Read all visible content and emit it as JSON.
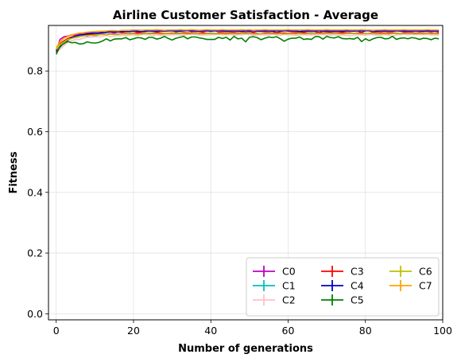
{
  "chart_data": {
    "type": "line",
    "title": "Airline Customer Satisfaction - Average",
    "xlabel": "Number of generations",
    "ylabel": "Fitness",
    "xlim": [
      -2,
      100
    ],
    "ylim": [
      -0.02,
      0.95
    ],
    "xticks": [
      0,
      20,
      40,
      60,
      80,
      100
    ],
    "yticks": [
      0.0,
      0.2,
      0.4,
      0.6,
      0.8
    ],
    "xtick_labels": [
      "0",
      "20",
      "40",
      "60",
      "80",
      "100"
    ],
    "ytick_labels": [
      "0.0",
      "0.2",
      "0.4",
      "0.6",
      "0.8"
    ],
    "grid": true,
    "legend_position": "lower-right",
    "legend_columns": 3,
    "x": [
      0,
      1,
      2,
      3,
      4,
      5,
      6,
      7,
      8,
      9,
      10,
      11,
      12,
      13,
      14,
      15,
      16,
      17,
      18,
      19,
      20,
      21,
      22,
      23,
      24,
      25,
      26,
      27,
      28,
      29,
      30,
      31,
      32,
      33,
      34,
      35,
      36,
      37,
      38,
      39,
      40,
      41,
      42,
      43,
      44,
      45,
      46,
      47,
      48,
      49,
      50,
      51,
      52,
      53,
      54,
      55,
      56,
      57,
      58,
      59,
      60,
      61,
      62,
      63,
      64,
      65,
      66,
      67,
      68,
      69,
      70,
      71,
      72,
      73,
      74,
      75,
      76,
      77,
      78,
      79,
      80,
      81,
      82,
      83,
      84,
      85,
      86,
      87,
      88,
      89,
      90,
      91,
      92,
      93,
      94,
      95,
      96,
      97,
      98,
      99
    ],
    "series": [
      {
        "name": "C0",
        "color": "#bf00bf",
        "values": [
          0.866,
          0.904,
          0.913,
          0.915,
          0.919,
          0.918,
          0.922,
          0.925,
          0.926,
          0.926,
          0.925,
          0.926,
          0.927,
          0.928,
          0.93,
          0.925,
          0.929,
          0.928,
          0.93,
          0.93,
          0.931,
          0.928,
          0.929,
          0.93,
          0.932,
          0.93,
          0.929,
          0.931,
          0.931,
          0.932,
          0.933,
          0.929,
          0.933,
          0.932,
          0.933,
          0.93,
          0.929,
          0.931,
          0.93,
          0.932,
          0.934,
          0.933,
          0.929,
          0.931,
          0.931,
          0.93,
          0.929,
          0.93,
          0.931,
          0.929,
          0.93,
          0.928,
          0.931,
          0.93,
          0.93,
          0.929,
          0.931,
          0.926,
          0.93,
          0.933,
          0.931,
          0.931,
          0.93,
          0.929,
          0.929,
          0.93,
          0.93,
          0.93,
          0.926,
          0.931,
          0.929,
          0.928,
          0.93,
          0.93,
          0.928,
          0.932,
          0.93,
          0.931,
          0.932,
          0.926,
          0.933,
          0.932,
          0.927,
          0.93,
          0.93,
          0.931,
          0.93,
          0.93,
          0.932,
          0.931,
          0.929,
          0.929,
          0.929,
          0.931,
          0.929,
          0.931,
          0.93,
          0.929,
          0.931,
          0.93
        ]
      },
      {
        "name": "C1",
        "color": "#00bfbf",
        "values": [
          0.855,
          0.884,
          0.889,
          0.903,
          0.909,
          0.91,
          0.913,
          0.917,
          0.915,
          0.918,
          0.916,
          0.919,
          0.922,
          0.92,
          0.922,
          0.92,
          0.922,
          0.922,
          0.922,
          0.924,
          0.924,
          0.923,
          0.92,
          0.924,
          0.925,
          0.924,
          0.924,
          0.921,
          0.923,
          0.924,
          0.922,
          0.926,
          0.925,
          0.925,
          0.922,
          0.925,
          0.923,
          0.922,
          0.924,
          0.924,
          0.925,
          0.924,
          0.923,
          0.923,
          0.922,
          0.925,
          0.922,
          0.924,
          0.924,
          0.924,
          0.925,
          0.922,
          0.924,
          0.922,
          0.922,
          0.924,
          0.924,
          0.925,
          0.923,
          0.924,
          0.923,
          0.924,
          0.924,
          0.923,
          0.925,
          0.924,
          0.925,
          0.922,
          0.924,
          0.924,
          0.924,
          0.923,
          0.924,
          0.924,
          0.923,
          0.925,
          0.925,
          0.923,
          0.924,
          0.923,
          0.924,
          0.922,
          0.922,
          0.922,
          0.924,
          0.924,
          0.922,
          0.925,
          0.923,
          0.924,
          0.923,
          0.923,
          0.924,
          0.924,
          0.923,
          0.924,
          0.924,
          0.922,
          0.924,
          0.923
        ]
      },
      {
        "name": "C2",
        "color": "#ffc0cb",
        "values": [
          0.86,
          0.872,
          0.883,
          0.896,
          0.9,
          0.904,
          0.904,
          0.908,
          0.911,
          0.911,
          0.913,
          0.912,
          0.914,
          0.918,
          0.913,
          0.916,
          0.916,
          0.917,
          0.917,
          0.918,
          0.919,
          0.917,
          0.92,
          0.92,
          0.919,
          0.915,
          0.92,
          0.917,
          0.919,
          0.918,
          0.919,
          0.92,
          0.918,
          0.918,
          0.921,
          0.92,
          0.92,
          0.918,
          0.919,
          0.918,
          0.92,
          0.919,
          0.921,
          0.919,
          0.919,
          0.92,
          0.918,
          0.919,
          0.919,
          0.922,
          0.919,
          0.917,
          0.919,
          0.919,
          0.919,
          0.918,
          0.921,
          0.919,
          0.918,
          0.92,
          0.919,
          0.919,
          0.917,
          0.919,
          0.919,
          0.919,
          0.918,
          0.919,
          0.92,
          0.92,
          0.918,
          0.918,
          0.919,
          0.918,
          0.919,
          0.917,
          0.916,
          0.918,
          0.919,
          0.919,
          0.918,
          0.92,
          0.919,
          0.918,
          0.918,
          0.92,
          0.918,
          0.915,
          0.919,
          0.919,
          0.921,
          0.919,
          0.92,
          0.92,
          0.92,
          0.919,
          0.92,
          0.919,
          0.918,
          0.918
        ]
      },
      {
        "name": "C3",
        "color": "#ff0000",
        "values": [
          0.87,
          0.89,
          0.899,
          0.907,
          0.912,
          0.915,
          0.917,
          0.919,
          0.919,
          0.92,
          0.92,
          0.922,
          0.922,
          0.92,
          0.923,
          0.922,
          0.921,
          0.924,
          0.924,
          0.923,
          0.924,
          0.925,
          0.924,
          0.925,
          0.924,
          0.923,
          0.926,
          0.925,
          0.924,
          0.924,
          0.925,
          0.924,
          0.924,
          0.926,
          0.925,
          0.925,
          0.923,
          0.925,
          0.926,
          0.924,
          0.924,
          0.923,
          0.924,
          0.926,
          0.925,
          0.925,
          0.925,
          0.923,
          0.926,
          0.924,
          0.924,
          0.925,
          0.923,
          0.923,
          0.925,
          0.924,
          0.925,
          0.924,
          0.925,
          0.925,
          0.924,
          0.926,
          0.925,
          0.925,
          0.926,
          0.924,
          0.923,
          0.924,
          0.925,
          0.925,
          0.925,
          0.924,
          0.925,
          0.925,
          0.925,
          0.926,
          0.924,
          0.924,
          0.925,
          0.924,
          0.923,
          0.924,
          0.924,
          0.925,
          0.925,
          0.925,
          0.925,
          0.925,
          0.925,
          0.923,
          0.925,
          0.924,
          0.924,
          0.924,
          0.924,
          0.925,
          0.924,
          0.924,
          0.924,
          0.926
        ]
      },
      {
        "name": "C4",
        "color": "#0000bf",
        "values": [
          0.862,
          0.879,
          0.892,
          0.902,
          0.91,
          0.914,
          0.918,
          0.92,
          0.922,
          0.924,
          0.925,
          0.925,
          0.927,
          0.927,
          0.929,
          0.929,
          0.929,
          0.93,
          0.93,
          0.93,
          0.932,
          0.931,
          0.93,
          0.931,
          0.932,
          0.932,
          0.931,
          0.933,
          0.932,
          0.932,
          0.932,
          0.932,
          0.931,
          0.932,
          0.933,
          0.932,
          0.933,
          0.931,
          0.933,
          0.932,
          0.931,
          0.932,
          0.933,
          0.933,
          0.931,
          0.932,
          0.933,
          0.932,
          0.931,
          0.933,
          0.932,
          0.933,
          0.932,
          0.932,
          0.932,
          0.933,
          0.931,
          0.932,
          0.932,
          0.932,
          0.933,
          0.932,
          0.932,
          0.93,
          0.932,
          0.932,
          0.933,
          0.932,
          0.932,
          0.932,
          0.932,
          0.932,
          0.932,
          0.932,
          0.931,
          0.932,
          0.933,
          0.932,
          0.932,
          0.932,
          0.932,
          0.933,
          0.932,
          0.931,
          0.932,
          0.932,
          0.932,
          0.932,
          0.933,
          0.932,
          0.932,
          0.932,
          0.932,
          0.933,
          0.932,
          0.931,
          0.933,
          0.932,
          0.932,
          0.932
        ]
      },
      {
        "name": "C5",
        "color": "#008000",
        "values": [
          0.855,
          0.882,
          0.891,
          0.897,
          0.893,
          0.894,
          0.889,
          0.89,
          0.896,
          0.893,
          0.892,
          0.894,
          0.899,
          0.906,
          0.899,
          0.905,
          0.906,
          0.906,
          0.91,
          0.903,
          0.906,
          0.91,
          0.909,
          0.904,
          0.911,
          0.91,
          0.905,
          0.908,
          0.914,
          0.907,
          0.902,
          0.908,
          0.911,
          0.914,
          0.906,
          0.912,
          0.912,
          0.909,
          0.907,
          0.904,
          0.904,
          0.904,
          0.911,
          0.907,
          0.911,
          0.902,
          0.914,
          0.906,
          0.908,
          0.896,
          0.911,
          0.913,
          0.91,
          0.903,
          0.908,
          0.912,
          0.91,
          0.913,
          0.906,
          0.898,
          0.905,
          0.908,
          0.908,
          0.912,
          0.904,
          0.906,
          0.904,
          0.913,
          0.913,
          0.905,
          0.914,
          0.91,
          0.909,
          0.913,
          0.907,
          0.906,
          0.907,
          0.905,
          0.911,
          0.897,
          0.906,
          0.9,
          0.906,
          0.91,
          0.911,
          0.906,
          0.907,
          0.914,
          0.904,
          0.908,
          0.909,
          0.906,
          0.91,
          0.908,
          0.904,
          0.908,
          0.907,
          0.903,
          0.908,
          0.906
        ]
      },
      {
        "name": "C6",
        "color": "#bfbf00",
        "values": [
          0.872,
          0.887,
          0.895,
          0.904,
          0.907,
          0.911,
          0.914,
          0.915,
          0.917,
          0.917,
          0.918,
          0.92,
          0.92,
          0.92,
          0.921,
          0.921,
          0.921,
          0.922,
          0.922,
          0.922,
          0.923,
          0.921,
          0.922,
          0.924,
          0.923,
          0.922,
          0.923,
          0.922,
          0.923,
          0.923,
          0.923,
          0.923,
          0.923,
          0.923,
          0.922,
          0.923,
          0.924,
          0.923,
          0.922,
          0.923,
          0.923,
          0.923,
          0.922,
          0.923,
          0.922,
          0.923,
          0.923,
          0.922,
          0.924,
          0.923,
          0.924,
          0.922,
          0.922,
          0.923,
          0.923,
          0.923,
          0.923,
          0.922,
          0.923,
          0.922,
          0.923,
          0.923,
          0.922,
          0.924,
          0.922,
          0.923,
          0.924,
          0.923,
          0.923,
          0.923,
          0.924,
          0.923,
          0.924,
          0.923,
          0.922,
          0.923,
          0.923,
          0.924,
          0.923,
          0.922,
          0.923,
          0.923,
          0.924,
          0.923,
          0.922,
          0.923,
          0.922,
          0.923,
          0.924,
          0.923,
          0.923,
          0.923,
          0.923,
          0.922,
          0.923,
          0.923,
          0.924,
          0.922,
          0.923,
          0.922
        ]
      },
      {
        "name": "C7",
        "color": "#ffa500",
        "values": [
          0.876,
          0.896,
          0.908,
          0.914,
          0.919,
          0.922,
          0.925,
          0.926,
          0.928,
          0.929,
          0.93,
          0.931,
          0.931,
          0.932,
          0.933,
          0.933,
          0.932,
          0.934,
          0.934,
          0.934,
          0.935,
          0.935,
          0.934,
          0.935,
          0.935,
          0.935,
          0.936,
          0.935,
          0.934,
          0.935,
          0.935,
          0.935,
          0.936,
          0.935,
          0.935,
          0.936,
          0.935,
          0.934,
          0.935,
          0.936,
          0.935,
          0.935,
          0.935,
          0.936,
          0.935,
          0.935,
          0.935,
          0.935,
          0.936,
          0.935,
          0.936,
          0.934,
          0.935,
          0.935,
          0.936,
          0.935,
          0.935,
          0.935,
          0.935,
          0.935,
          0.936,
          0.935,
          0.935,
          0.935,
          0.935,
          0.936,
          0.935,
          0.935,
          0.935,
          0.935,
          0.936,
          0.935,
          0.935,
          0.935,
          0.935,
          0.936,
          0.935,
          0.935,
          0.935,
          0.936,
          0.935,
          0.935,
          0.934,
          0.935,
          0.935,
          0.936,
          0.935,
          0.935,
          0.935,
          0.935,
          0.936,
          0.935,
          0.935,
          0.935,
          0.935,
          0.935,
          0.936,
          0.935,
          0.935,
          0.935
        ]
      }
    ]
  }
}
